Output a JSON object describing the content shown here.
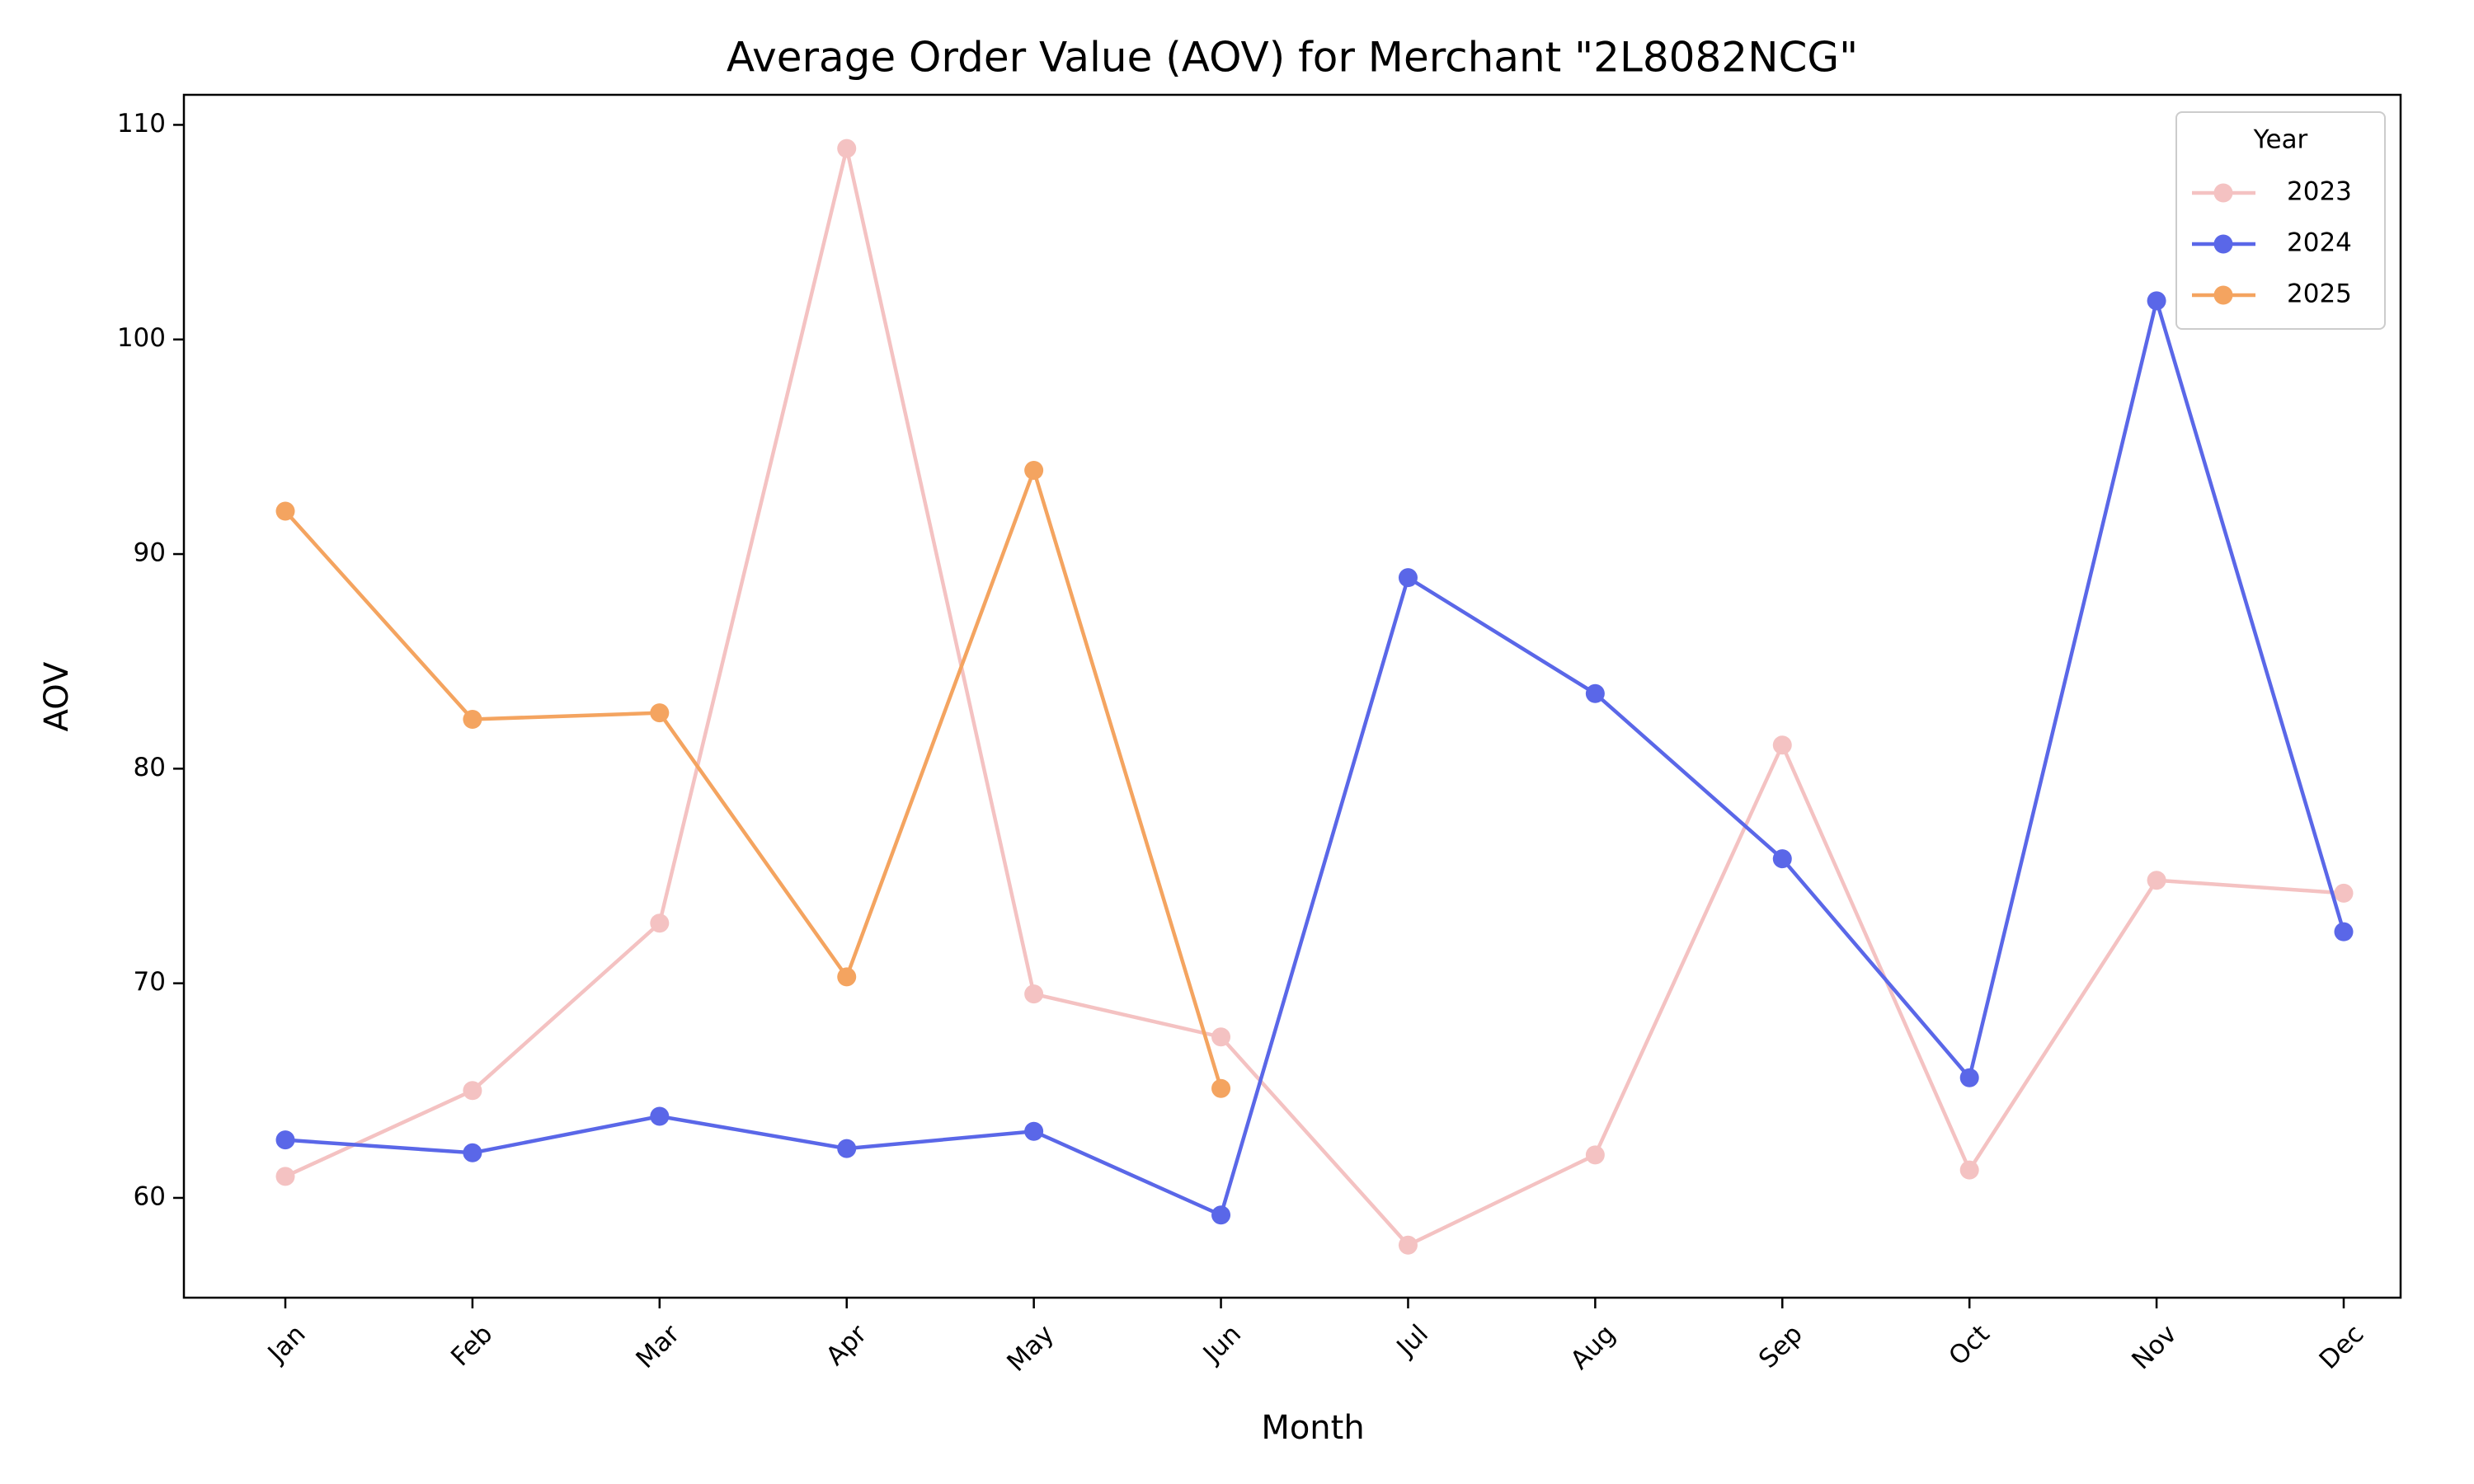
{
  "chart_data": {
    "type": "line",
    "title": "Average Order Value (AOV) for Merchant \"2L8082NCG\"",
    "x_label": "Month",
    "y_label": "AOV",
    "categories": [
      "Jan",
      "Feb",
      "Mar",
      "Apr",
      "May",
      "Jun",
      "Jul",
      "Aug",
      "Sep",
      "Oct",
      "Nov",
      "Dec"
    ],
    "series": [
      {
        "name": "2023",
        "color": "#f4c2c2",
        "values": [
          61.0,
          65.0,
          72.8,
          108.9,
          69.5,
          67.5,
          57.8,
          62.0,
          81.1,
          61.3,
          74.8,
          74.2
        ]
      },
      {
        "name": "2024",
        "color": "#5a67e8",
        "values": [
          62.7,
          62.1,
          63.8,
          62.3,
          63.1,
          59.2,
          88.9,
          83.5,
          75.8,
          65.6,
          101.8,
          72.4
        ]
      },
      {
        "name": "2025",
        "color": "#f4a460",
        "values": [
          92.0,
          82.3,
          82.6,
          70.3,
          93.9,
          65.1,
          null,
          null,
          null,
          null,
          null,
          null
        ]
      }
    ],
    "ylim": [
      55.35,
      111.4
    ],
    "yticks": [
      60,
      70,
      80,
      90,
      100,
      110
    ],
    "legend_title": "Year",
    "legend": "upper right",
    "grid": false
  }
}
